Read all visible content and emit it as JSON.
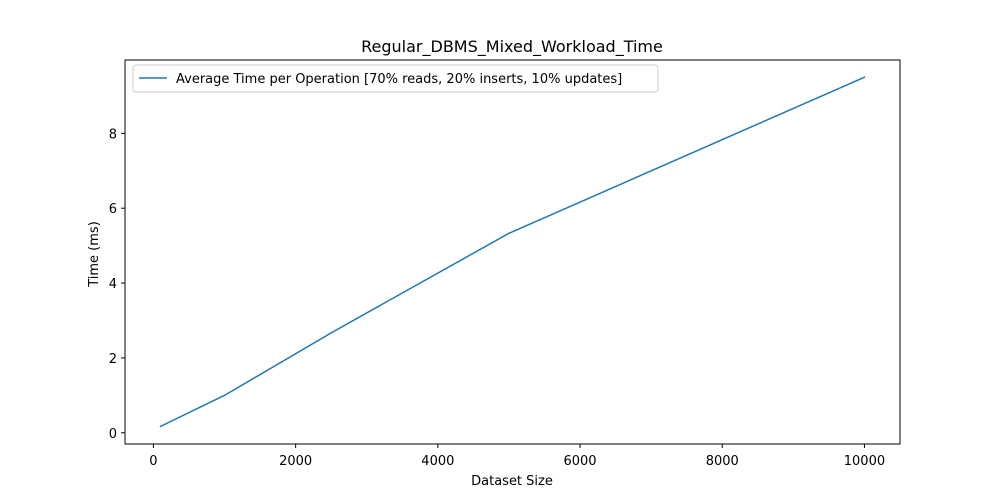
{
  "chart_data": {
    "type": "line",
    "title": "Regular_DBMS_Mixed_Workload_Time",
    "xlabel": "Dataset Size",
    "ylabel": "Time (ms)",
    "xlim": [
      -400,
      10500
    ],
    "ylim": [
      -0.3,
      9.96
    ],
    "xticks": [
      0,
      2000,
      4000,
      6000,
      8000,
      10000
    ],
    "xtick_labels": [
      "0",
      "2000",
      "4000",
      "6000",
      "8000",
      "10000"
    ],
    "yticks": [
      0,
      2,
      4,
      6,
      8
    ],
    "ytick_labels": [
      "0",
      "2",
      "4",
      "6",
      "8"
    ],
    "grid": false,
    "legend_position": "top-left",
    "series": [
      {
        "name": "Average Time per Operation [70% reads, 20% inserts, 10% updates]",
        "color": "#1f77b4",
        "x": [
          100,
          1000,
          2500,
          5000,
          10000
        ],
        "y": [
          0.17,
          1.0,
          2.67,
          5.33,
          9.5
        ]
      }
    ]
  }
}
